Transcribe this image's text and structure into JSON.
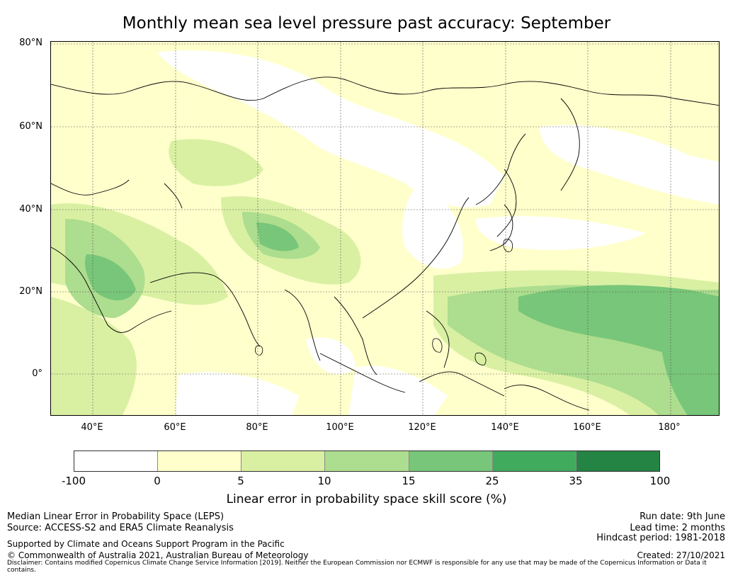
{
  "title": "Monthly mean sea level pressure past accuracy: September",
  "map": {
    "lat_ticks": [
      "80°N",
      "60°N",
      "40°N",
      "20°N",
      "0°"
    ],
    "lon_ticks": [
      "40°E",
      "60°E",
      "80°E",
      "100°E",
      "120°E",
      "140°E",
      "160°E",
      "180°"
    ]
  },
  "colorbar": {
    "ticks": [
      "-100",
      "0",
      "5",
      "10",
      "15",
      "25",
      "35",
      "100"
    ],
    "colors": [
      "#ffffff",
      "#ffffcc",
      "#d9f0a3",
      "#addd8e",
      "#78c679",
      "#41ab5d",
      "#238443"
    ],
    "label": "Linear error in probability space skill score (%)"
  },
  "footer": {
    "left1": "Median Linear Error in Probability Space (LEPS)",
    "left2": "Source: ACCESS-S2 and ERA5 Climate Reanalysis",
    "left3": "Supported by Climate and Oceans Support Program in the Pacific",
    "left4": "© Commonwealth of Australia 2021, Australian Bureau of Meteorology",
    "right1": "Run date: 9th June",
    "right2": "Lead time: 2 months",
    "right3": "Hindcast period: 1981-2018",
    "right4": "Created: 27/10/2021",
    "disclaimer": "Disclaimer: Contains modified Copernicus Climate Change Service Information [2019]. Neither the European Commission nor ECMWF is responsible for any use that may be made of the Copernicus Information or Data it contains."
  }
}
